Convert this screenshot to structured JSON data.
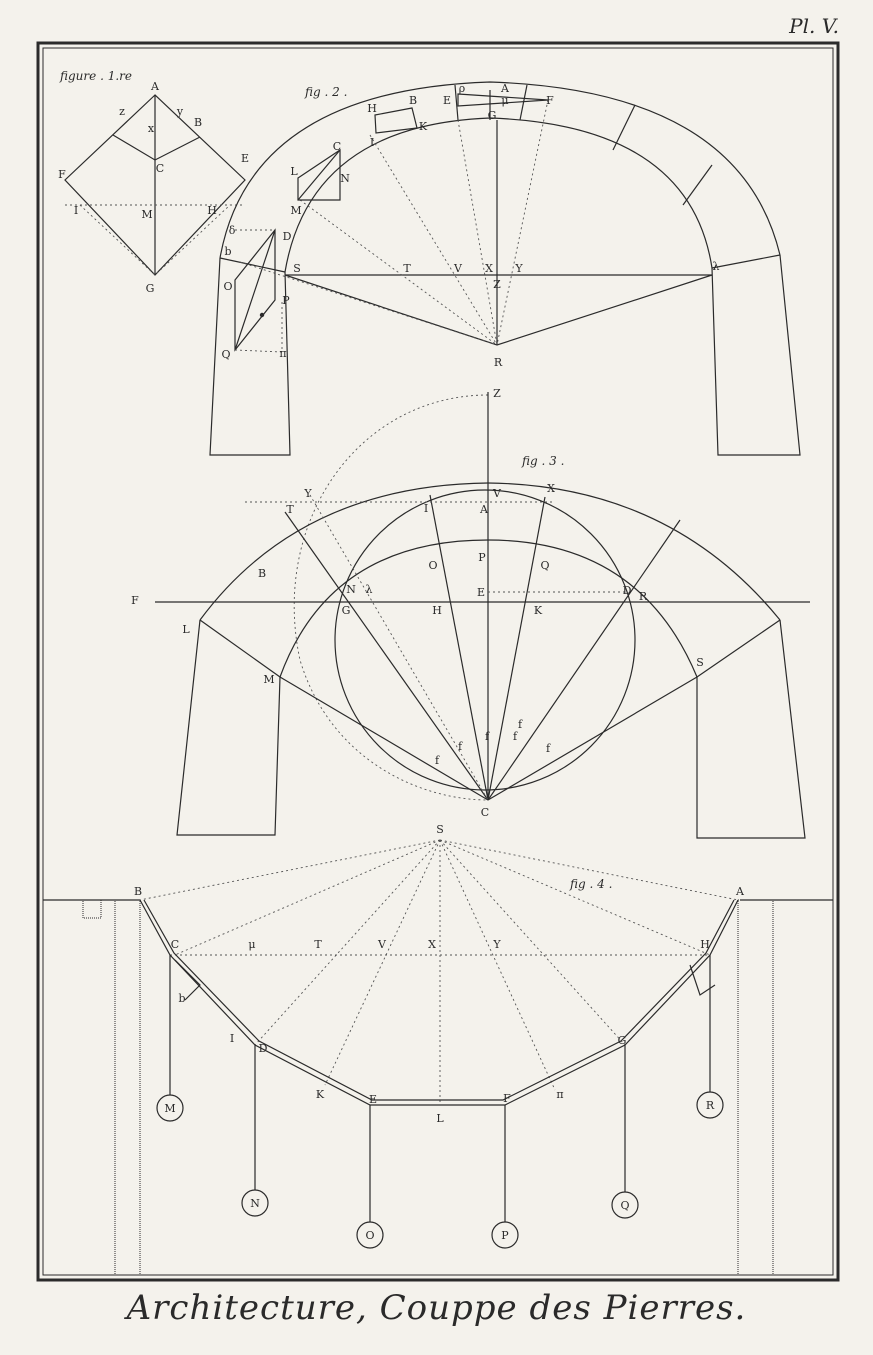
{
  "plate": {
    "number": "Pl. V.",
    "title": "Architecture, Couppe des Pierres."
  },
  "figures": {
    "fig1": {
      "caption": "figure . 1.re",
      "labels": [
        "A",
        "z",
        "y",
        "x",
        "B",
        "C",
        "E",
        "F",
        "I",
        "M",
        "H",
        "G"
      ]
    },
    "fig2": {
      "caption": "fig . 2 .",
      "labels": [
        "H",
        "B",
        "K",
        "I",
        "E",
        "ρ",
        "A",
        "μ",
        "F",
        "G",
        "C",
        "L",
        "N",
        "M",
        "δ",
        "D",
        "b",
        "S",
        "T",
        "V",
        "X",
        "Y",
        "Z",
        "λ",
        "O",
        "P",
        "Q",
        "π",
        "R"
      ]
    },
    "fig3": {
      "caption": "fig . 3 .",
      "labels": [
        "Z",
        "Y",
        "T",
        "I",
        "V",
        "X",
        "A",
        "B",
        "P",
        "λ",
        "N",
        "O",
        "Q",
        "F",
        "E",
        "D",
        "R",
        "G",
        "H",
        "K",
        "L",
        "S",
        "M",
        "f",
        "f",
        "f",
        "f",
        "f",
        "f",
        "C"
      ]
    },
    "fig4": {
      "caption": "fig . 4 .",
      "labels": [
        "S",
        "B",
        "A",
        "C",
        "μ",
        "T",
        "V",
        "X",
        "Y",
        "H",
        "b",
        "I",
        "D",
        "G",
        "K",
        "E",
        "L",
        "F",
        "π",
        "M",
        "N",
        "O",
        "P",
        "Q",
        "R"
      ]
    }
  }
}
